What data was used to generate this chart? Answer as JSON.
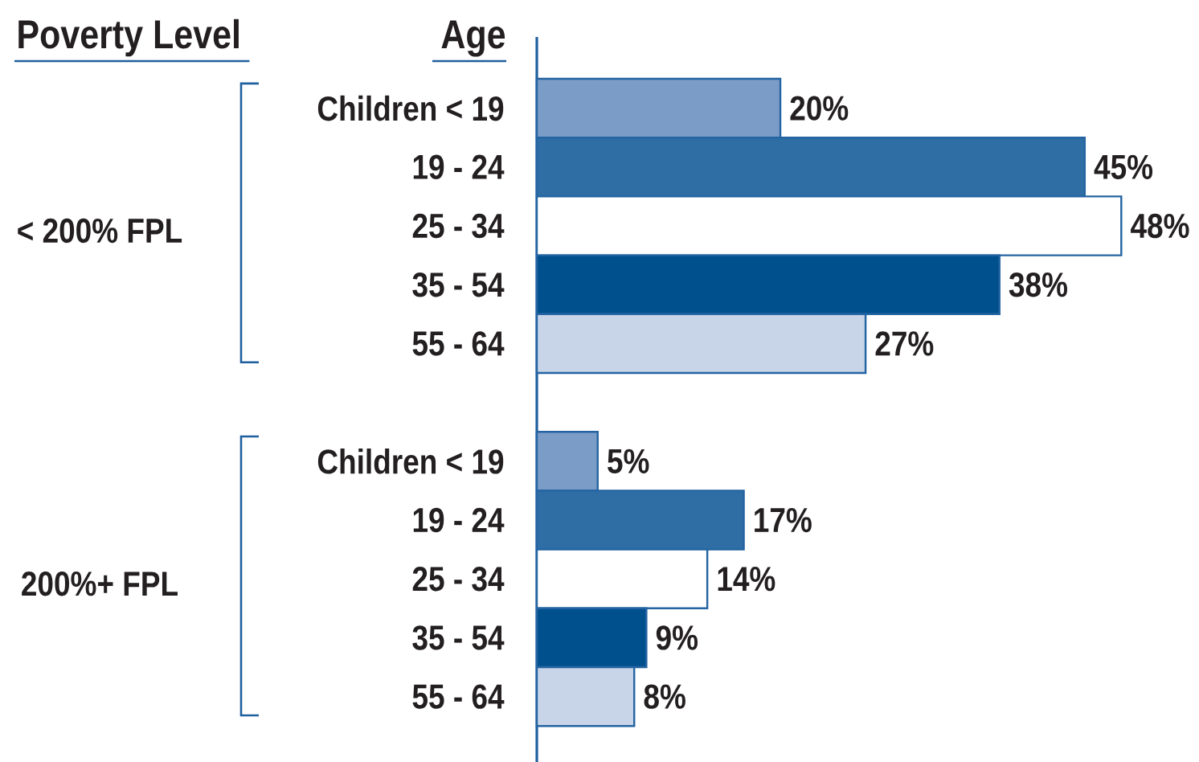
{
  "chart_data": {
    "type": "bar",
    "orientation": "horizontal",
    "ylabel": "Age",
    "categories": [
      "Children < 19",
      "19 - 24",
      "25 - 34",
      "35 - 54",
      "55 - 64",
      null,
      "Children < 19",
      "19 - 24",
      "25 - 34",
      "35 - 54",
      "55 - 64"
    ],
    "values": [
      20,
      45,
      48,
      38,
      27,
      null,
      5,
      17,
      14,
      9,
      8
    ],
    "colors": [
      "#7b9cc7",
      "#2e6ea5",
      "#ffffff",
      "#00508d",
      "#c8d4e7",
      null,
      "#7b9cc7",
      "#2e6ea5",
      "#ffffff",
      "#00508d",
      "#c8d4e7"
    ],
    "value_labels": [
      "20%",
      "45%",
      "48%",
      "38%",
      "27%",
      null,
      "5%",
      "17%",
      "14%",
      "9%",
      "8%"
    ],
    "annotations": [
      "Poverty Level",
      "< 200% FPL",
      "200%+ FPL"
    ]
  }
}
